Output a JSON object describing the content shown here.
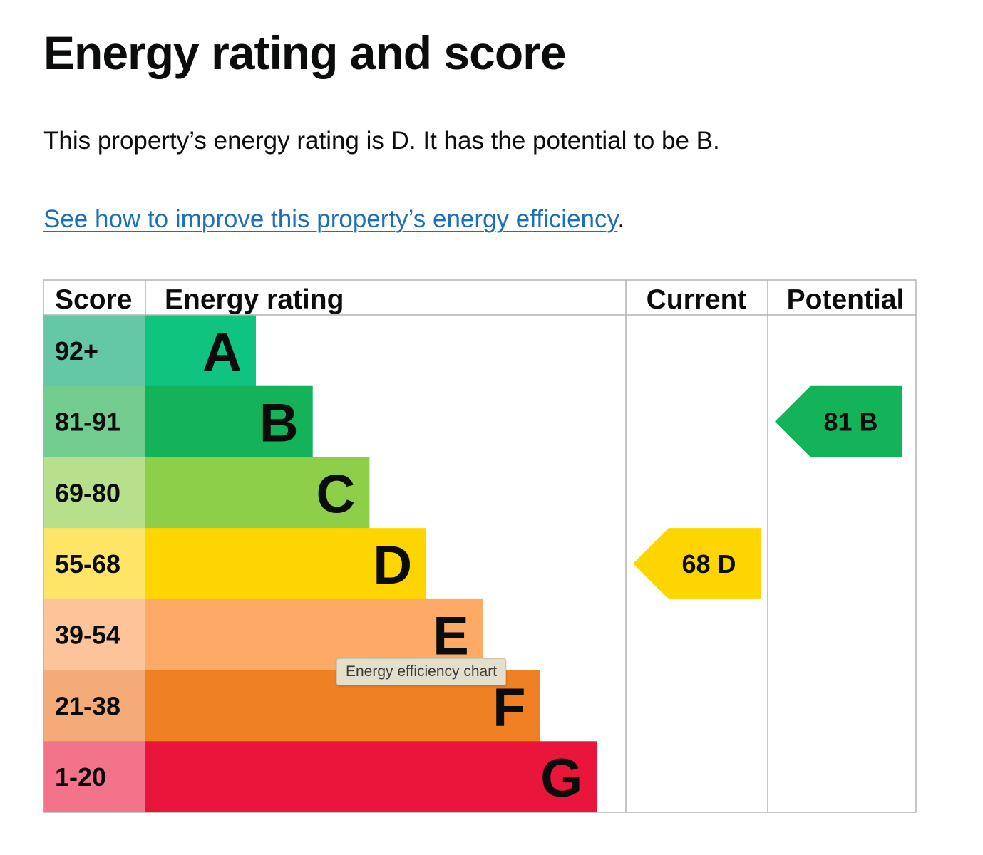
{
  "title": "Energy rating and score",
  "summary": "This property’s energy rating is D. It has the potential to be B.",
  "improve_link": "See how to improve this property’s energy efficiency",
  "improve_suffix": ".",
  "tooltip": "Energy efficiency chart",
  "chart_data": {
    "type": "table",
    "headers": [
      "Score",
      "Energy rating",
      "Current",
      "Potential"
    ],
    "bands": [
      {
        "band": "A",
        "score": "92+",
        "color": "#0fc47f",
        "light": "#64c7a5"
      },
      {
        "band": "B",
        "score": "81-91",
        "color": "#14b35a",
        "light": "#72cc8f"
      },
      {
        "band": "C",
        "score": "69-80",
        "color": "#8ecf4a",
        "light": "#b8e08c"
      },
      {
        "band": "D",
        "score": "55-68",
        "color": "#ffd500",
        "light": "#ffe567"
      },
      {
        "band": "E",
        "score": "39-54",
        "color": "#fcaa65",
        "light": "#fdc49a"
      },
      {
        "band": "F",
        "score": "21-38",
        "color": "#ef8023",
        "light": "#f3ac77"
      },
      {
        "band": "G",
        "score": "1-20",
        "color": "#e9153b",
        "light": "#f2738a"
      }
    ],
    "current": {
      "score": "68",
      "band": "D",
      "color": "#ffd500"
    },
    "potential": {
      "score": "81",
      "band": "B",
      "color": "#14b35a"
    }
  }
}
